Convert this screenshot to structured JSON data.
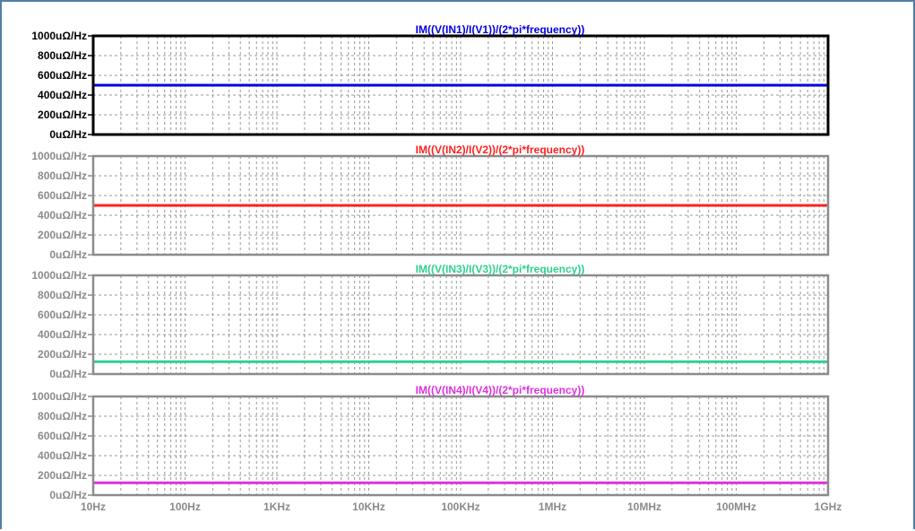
{
  "chart_data": {
    "type": "line",
    "x_scale": "log",
    "x_range": [
      "10Hz",
      "1GHz"
    ],
    "x_tick_labels": [
      "10Hz",
      "100Hz",
      "1KHz",
      "10KHz",
      "100KHz",
      "1MHz",
      "10MHz",
      "100MHz",
      "1GHz"
    ],
    "grid": true,
    "panes": [
      {
        "title": "IM((V(IN1)/I(V1))/(2*pi*frequency))",
        "color": "#0000e0",
        "frame_color": "#000000",
        "tick_color": "#000000",
        "y_tick_labels": [
          "1000uΩ/Hz",
          "800uΩ/Hz",
          "600uΩ/Hz",
          "400uΩ/Hz",
          "200uΩ/Hz",
          "0uΩ/Hz"
        ],
        "ylim": [
          0,
          1000
        ],
        "x": [
          "10Hz",
          "1GHz"
        ],
        "y": [
          500,
          500
        ]
      },
      {
        "title": "IM((V(IN2)/I(V2))/(2*pi*frequency))",
        "color": "#ff2020",
        "frame_color": "#8c8c8c",
        "tick_color": "#8a8a8a",
        "y_tick_labels": [
          "1000uΩ/Hz",
          "800uΩ/Hz",
          "600uΩ/Hz",
          "400uΩ/Hz",
          "200uΩ/Hz",
          "0uΩ/Hz"
        ],
        "ylim": [
          0,
          1000
        ],
        "x": [
          "10Hz",
          "1GHz"
        ],
        "y": [
          500,
          500
        ]
      },
      {
        "title": "IM((V(IN3)/I(V3))/(2*pi*frequency))",
        "color": "#2fd090",
        "frame_color": "#8c8c8c",
        "tick_color": "#8a8a8a",
        "y_tick_labels": [
          "1000uΩ/Hz",
          "800uΩ/Hz",
          "600uΩ/Hz",
          "400uΩ/Hz",
          "200uΩ/Hz",
          "0uΩ/Hz"
        ],
        "ylim": [
          0,
          1000
        ],
        "x": [
          "10Hz",
          "1GHz"
        ],
        "y": [
          125,
          125
        ]
      },
      {
        "title": "IM((V(IN4)/I(V4))/(2*pi*frequency))",
        "color": "#e030e0",
        "frame_color": "#8c8c8c",
        "tick_color": "#8a8a8a",
        "y_tick_labels": [
          "1000uΩ/Hz",
          "800uΩ/Hz",
          "600uΩ/Hz",
          "400uΩ/Hz",
          "200uΩ/Hz",
          "0uΩ/Hz"
        ],
        "ylim": [
          0,
          1000
        ],
        "x": [
          "10Hz",
          "1GHz"
        ],
        "y": [
          125,
          125
        ]
      }
    ]
  }
}
